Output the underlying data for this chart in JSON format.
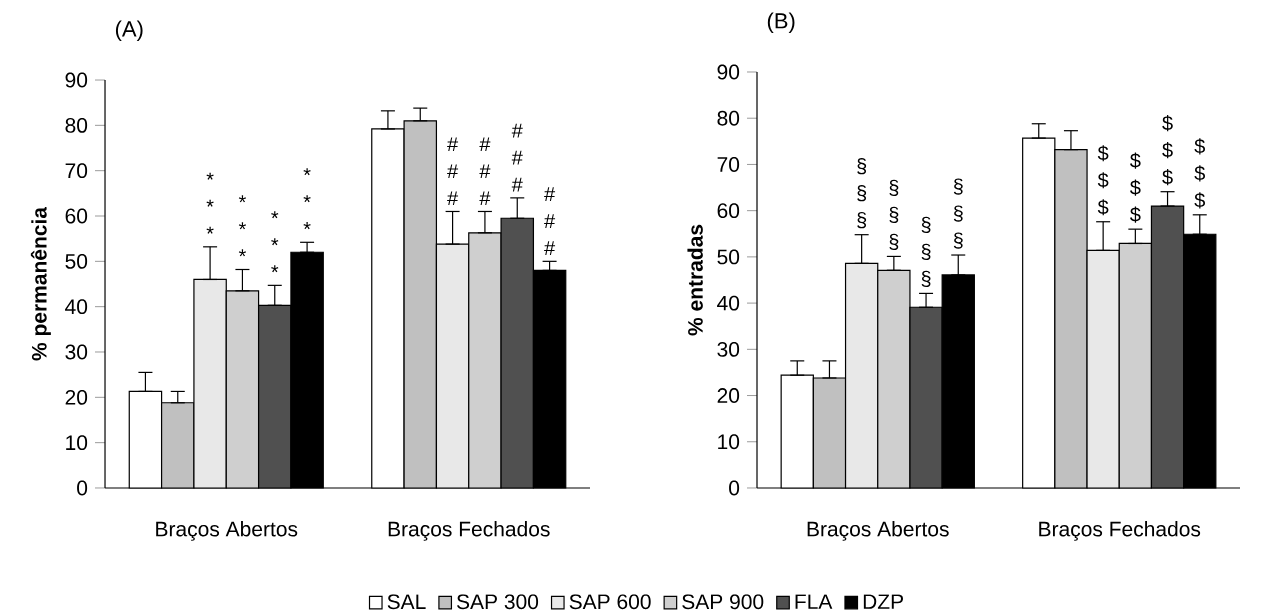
{
  "chart_data": [
    {
      "type": "bar",
      "title": "(A)",
      "ylabel": "% permanência",
      "categories": [
        "Braços Abertos",
        "Braços Fechados"
      ],
      "ylim": [
        0,
        90
      ],
      "yticks": [
        0,
        10,
        20,
        30,
        40,
        50,
        60,
        70,
        80,
        90
      ],
      "legend": "bottom",
      "series": [
        {
          "name": "SAL",
          "color": "#ffffff",
          "values": [
            21.3,
            79.2
          ],
          "errors": [
            [
              21.3,
              25.5
            ],
            [
              79.2,
              83.2
            ]
          ]
        },
        {
          "name": "SAP 300",
          "color": "#c0c0c0",
          "values": [
            18.8,
            81
          ],
          "errors": [
            [
              18.8,
              21.3
            ],
            [
              81,
              83.8
            ]
          ]
        },
        {
          "name": "SAP 600",
          "color": "#e8e8e8",
          "values": [
            46,
            53.8
          ],
          "errors": [
            [
              46,
              53.2
            ],
            [
              53.8,
              61
            ]
          ],
          "value_labels": [
            "* * *",
            "# # #"
          ]
        },
        {
          "name": "SAP 900",
          "color": "#cfcfcf",
          "values": [
            43.5,
            56.3
          ],
          "errors": [
            [
              43.5,
              48.2
            ],
            [
              56.3,
              61
            ]
          ],
          "value_labels": [
            "* * *",
            "# # #"
          ]
        },
        {
          "name": "FLA",
          "color": "#505050",
          "values": [
            40.3,
            59.5
          ],
          "errors": [
            [
              40.3,
              44.7
            ],
            [
              59.5,
              64
            ]
          ],
          "value_labels": [
            "* * *",
            "# # #"
          ]
        },
        {
          "name": "DZP",
          "color": "#000000",
          "values": [
            52,
            48
          ],
          "errors": [
            [
              52,
              54.2
            ],
            [
              48,
              50
            ]
          ],
          "value_labels": [
            "* * *",
            "# # #"
          ]
        }
      ]
    },
    {
      "type": "bar",
      "title": "(B)",
      "ylabel": "% entradas",
      "categories": [
        "Braços Abertos",
        "Braços Fechados"
      ],
      "ylim": [
        0,
        90
      ],
      "yticks": [
        0,
        10,
        20,
        30,
        40,
        50,
        60,
        70,
        80,
        90
      ],
      "series": [
        {
          "color": "#ffffff",
          "values": [
            24.4,
            75.7
          ],
          "errors": [
            [
              24.4,
              27.5
            ],
            [
              75.7,
              78.8
            ]
          ]
        },
        {
          "color": "#c0c0c0",
          "values": [
            23.8,
            73.2
          ],
          "errors": [
            [
              23.8,
              27.5
            ],
            [
              73.2,
              77.3
            ]
          ]
        },
        {
          "color": "#e8e8e8",
          "values": [
            48.6,
            51.4
          ],
          "errors": [
            [
              48.6,
              54.8
            ],
            [
              51.4,
              57.6
            ]
          ],
          "value_labels": [
            "§ § §",
            "$ $ $"
          ]
        },
        {
          "color": "#cfcfcf",
          "values": [
            47.1,
            52.9
          ],
          "errors": [
            [
              47.1,
              50.1
            ],
            [
              52.9,
              56
            ]
          ],
          "value_labels": [
            "§ § §",
            "$ $ $"
          ]
        },
        {
          "color": "#505050",
          "values": [
            39.1,
            61
          ],
          "errors": [
            [
              39.1,
              42.1
            ],
            [
              61,
              64.1
            ]
          ],
          "value_labels": [
            "§ § §",
            "$ $ $"
          ]
        },
        {
          "color": "#000000",
          "values": [
            46.1,
            54.9
          ],
          "errors": [
            [
              46.1,
              50.4
            ],
            [
              54.9,
              59.1
            ]
          ],
          "value_labels": [
            "§ § §",
            "$ $ $"
          ]
        }
      ]
    }
  ]
}
